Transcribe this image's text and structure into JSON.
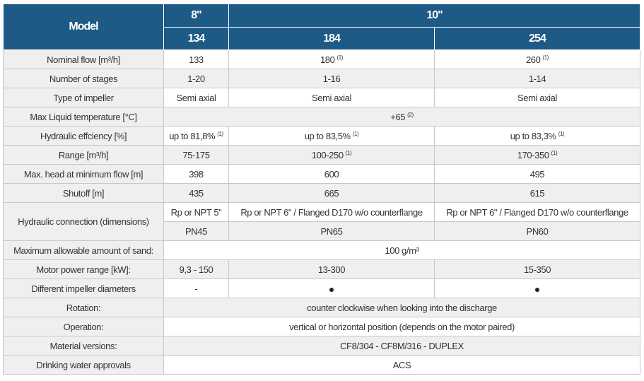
{
  "header": {
    "model_label": "Model",
    "groups": [
      "8\"",
      "10\""
    ],
    "models": [
      "134",
      "184",
      "254"
    ]
  },
  "colors": {
    "header_bg": "#1d5a85",
    "label_bg": "#efefef"
  },
  "rows": [
    {
      "label": "Nominal flow [m³/h]",
      "cells": [
        {
          "v": "133"
        },
        {
          "v": "180",
          "n": "(1)"
        },
        {
          "v": "260",
          "n": "(1)"
        }
      ]
    },
    {
      "label": "Number of stages",
      "cells": [
        {
          "v": "1-20"
        },
        {
          "v": "1-16"
        },
        {
          "v": "1-14"
        }
      ]
    },
    {
      "label": "Type of impeller",
      "cells": [
        {
          "v": "Semi axial"
        },
        {
          "v": "Semi axial"
        },
        {
          "v": "Semi axial"
        }
      ]
    },
    {
      "label": "Max Liquid temperature [°C]",
      "span": {
        "v": "+65",
        "n": "(2)"
      }
    },
    {
      "label": "Hydraulic effciency [%]",
      "cells": [
        {
          "v": "up to 81,8%",
          "n": "(1)"
        },
        {
          "v": "up to 83,5%",
          "n": "(1)"
        },
        {
          "v": "up to 83,3%",
          "n": "(1)"
        }
      ]
    },
    {
      "label": "Range [m³/h]",
      "cells": [
        {
          "v": "75-175"
        },
        {
          "v": "100-250",
          "n": "(1)"
        },
        {
          "v": "170-350",
          "n": "(1)"
        }
      ]
    },
    {
      "label": "Max. head at minimum flow [m]",
      "cells": [
        {
          "v": "398"
        },
        {
          "v": "600"
        },
        {
          "v": "495"
        }
      ]
    },
    {
      "label": "Shutoff [m]",
      "cells": [
        {
          "v": "435"
        },
        {
          "v": "665"
        },
        {
          "v": "615"
        }
      ]
    }
  ],
  "hydraulic": {
    "label": "Hydraulic connection (dimensions)",
    "row1": [
      "Rp or NPT 5\"",
      "Rp or NPT 6\" / Flanged D170 w/o counterflange",
      "Rp or NPT 6\" / Flanged D170 w/o counterflange"
    ],
    "row2": [
      "PN45",
      "PN65",
      "PN60"
    ]
  },
  "rows2": [
    {
      "label": "Maximum allowable amount of sand:",
      "span": {
        "v": "100 g/m³"
      }
    },
    {
      "label": "Motor power range [kW]:",
      "cells": [
        {
          "v": "9,3 - 150"
        },
        {
          "v": "13-300"
        },
        {
          "v": "15-350"
        }
      ]
    },
    {
      "label": "Different impeller diameters",
      "cells": [
        {
          "v": "-"
        },
        {
          "dot": true
        },
        {
          "dot": true
        }
      ]
    },
    {
      "label": "Rotation:",
      "span": {
        "v": "counter clockwise when looking into the discharge"
      }
    },
    {
      "label": "Operation:",
      "span": {
        "v": "vertical or horizontal position (depends on the motor paired)"
      }
    },
    {
      "label": "Material versions:",
      "span": {
        "v": "CF8/304 - CF8M/316 - DUPLEX"
      }
    },
    {
      "label": "Drinking water approvals",
      "span": {
        "v": "ACS"
      }
    }
  ]
}
